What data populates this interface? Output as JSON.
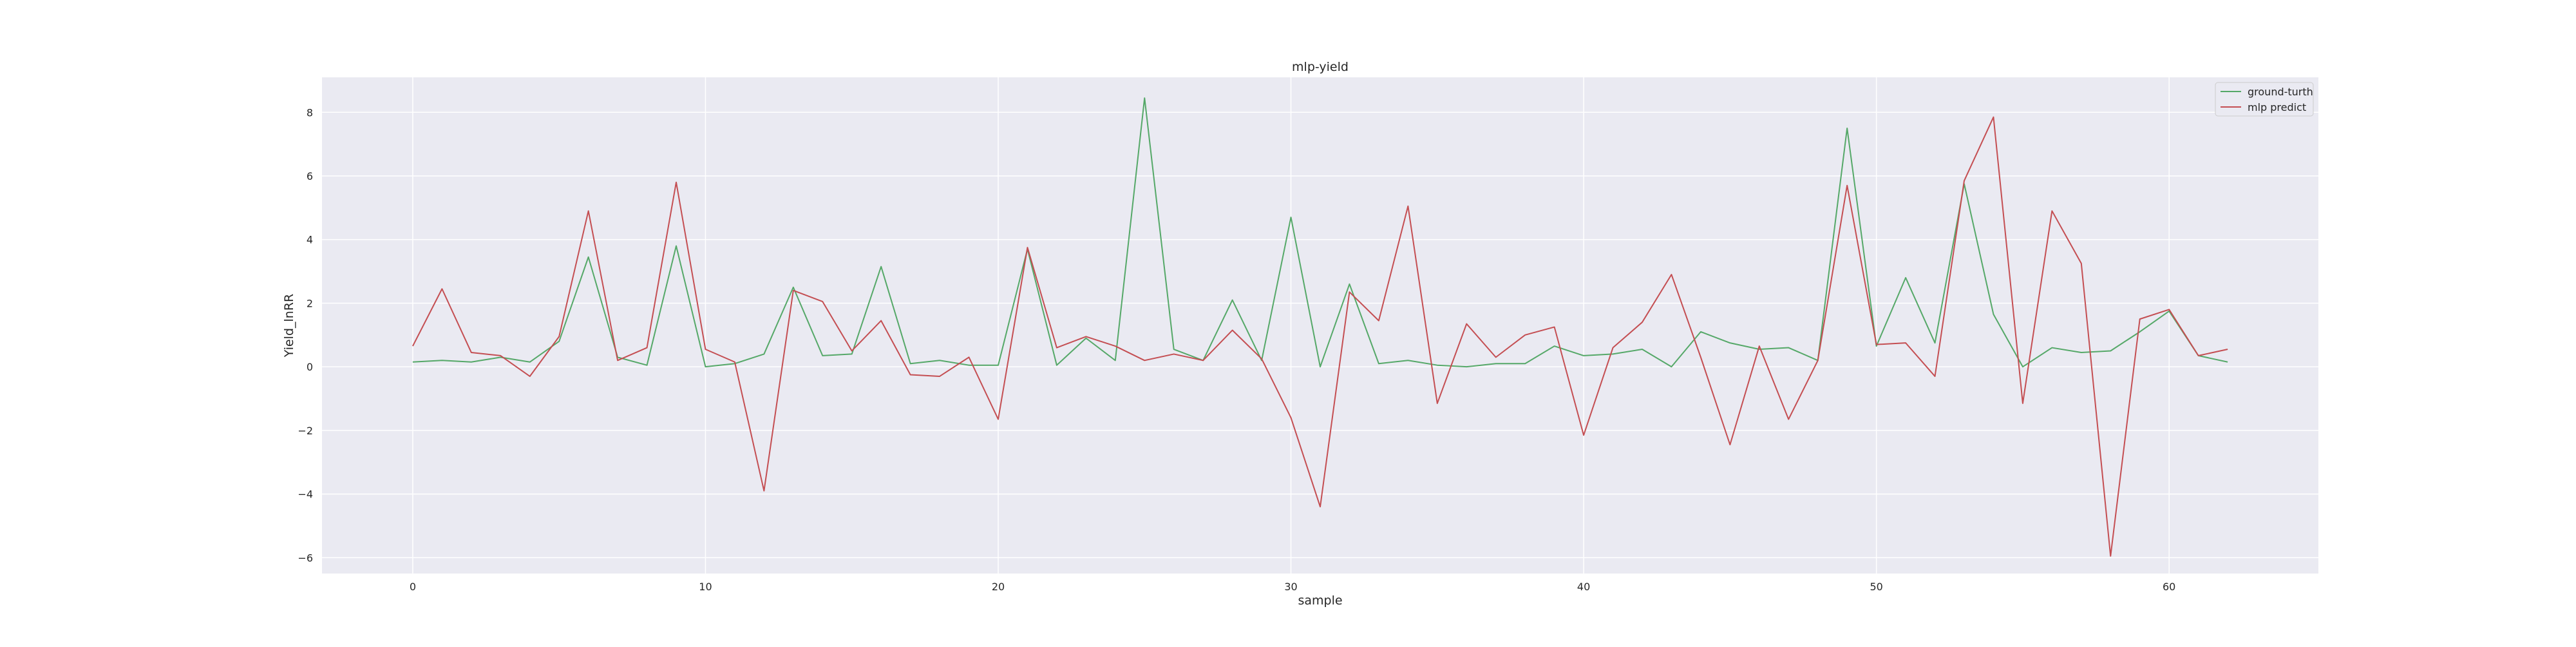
{
  "chart_data": {
    "type": "line",
    "title": "mlp-yield",
    "xlabel": "sample",
    "ylabel": "Yield_lnRR",
    "xlim": [
      -3.1,
      65.1
    ],
    "ylim": [
      -6.5,
      9.1
    ],
    "x_ticks": [
      0,
      10,
      20,
      30,
      40,
      50,
      60
    ],
    "y_ticks": [
      -6,
      -4,
      -2,
      0,
      2,
      4,
      6,
      8
    ],
    "grid": true,
    "legend_position": "top-right",
    "x": [
      0,
      1,
      2,
      3,
      4,
      5,
      6,
      7,
      8,
      9,
      10,
      11,
      12,
      13,
      14,
      15,
      16,
      17,
      18,
      19,
      20,
      21,
      22,
      23,
      24,
      25,
      26,
      27,
      28,
      29,
      30,
      31,
      32,
      33,
      34,
      35,
      36,
      37,
      38,
      39,
      40,
      41,
      42,
      43,
      44,
      45,
      46,
      47,
      48,
      49,
      50,
      51,
      52,
      53,
      54,
      55,
      56,
      57,
      58,
      59,
      60,
      61,
      62
    ],
    "series": [
      {
        "name": "ground-turth",
        "color": "#55a868",
        "values": [
          0.15,
          0.2,
          0.15,
          0.3,
          0.15,
          0.8,
          3.45,
          0.3,
          0.05,
          3.8,
          0.0,
          0.1,
          0.4,
          2.5,
          0.35,
          0.4,
          3.15,
          0.1,
          0.2,
          0.05,
          0.05,
          3.7,
          0.05,
          0.9,
          0.2,
          8.45,
          0.55,
          0.2,
          2.1,
          0.2,
          4.7,
          0.0,
          2.6,
          0.1,
          0.2,
          0.05,
          0.0,
          0.1,
          0.1,
          0.65,
          0.35,
          0.4,
          0.55,
          0.0,
          1.1,
          0.75,
          0.55,
          0.6,
          0.2,
          7.5,
          0.65,
          2.8,
          0.75,
          5.75,
          1.65,
          0.0,
          0.6,
          0.45,
          0.5,
          1.1,
          1.75,
          0.35,
          0.15
        ]
      },
      {
        "name": "mlp predict",
        "color": "#c44e52",
        "values": [
          0.65,
          2.45,
          0.45,
          0.35,
          -0.3,
          0.95,
          4.9,
          0.2,
          0.6,
          5.8,
          0.55,
          0.15,
          -3.9,
          2.4,
          2.05,
          0.5,
          1.45,
          -0.25,
          -0.3,
          0.3,
          -1.65,
          3.75,
          0.6,
          0.95,
          0.65,
          0.2,
          0.4,
          0.2,
          1.15,
          0.25,
          -1.6,
          -4.4,
          2.35,
          1.45,
          5.05,
          -1.15,
          1.35,
          0.3,
          1.0,
          1.25,
          -2.15,
          0.6,
          1.4,
          2.9,
          0.3,
          -2.45,
          0.65,
          -1.65,
          0.2,
          5.7,
          0.7,
          0.75,
          -0.3,
          5.85,
          7.85,
          -1.15,
          4.9,
          3.25,
          -5.95,
          1.5,
          1.8,
          0.35,
          0.55
        ]
      }
    ]
  }
}
